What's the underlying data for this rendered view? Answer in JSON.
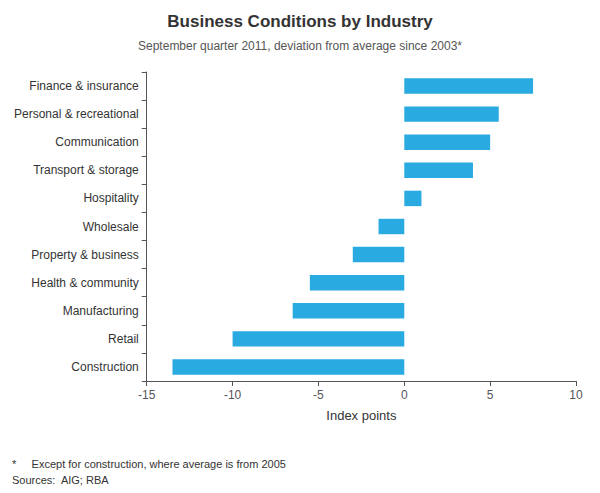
{
  "chart_data": {
    "type": "bar",
    "orientation": "horizontal",
    "title": "Business Conditions by Industry",
    "subtitle": "September quarter 2011, deviation from average since 2003*",
    "categories": [
      "Finance & insurance",
      "Personal & recreational",
      "Communication",
      "Transport & storage",
      "Hospitality",
      "Wholesale",
      "Property & business",
      "Health & community",
      "Manufacturing",
      "Retail",
      "Construction"
    ],
    "values": [
      7.5,
      5.5,
      5.0,
      4.0,
      1.0,
      -1.5,
      -3.0,
      -5.5,
      -6.5,
      -10.0,
      -13.5
    ],
    "color": "#29ABE2",
    "xlabel": "Index points",
    "xlim": [
      -15,
      10
    ],
    "xticks": [
      -15,
      -10,
      -5,
      0,
      5,
      10
    ],
    "grid": false,
    "annotations": [
      "*     Except for construction, where average is from 2005",
      "Sources:  AIG; RBA"
    ]
  }
}
